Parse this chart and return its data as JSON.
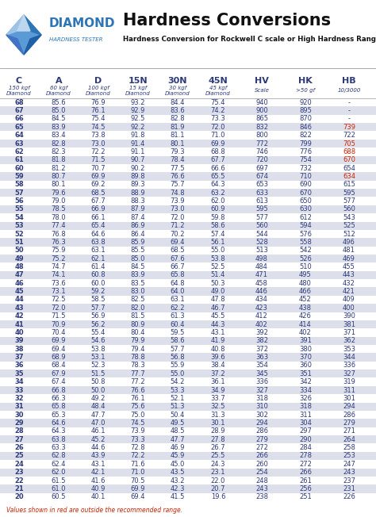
{
  "title": "Hardness Conversions",
  "subtitle": "Hardness Conversion for Rockwell C scale or High Hardness Range",
  "logo_text": "DIAMOND",
  "logo_subtext": "HARDNESS TESTER",
  "headers": [
    "C",
    "A",
    "D",
    "15N",
    "30N",
    "45N",
    "HV",
    "HK",
    "HB"
  ],
  "subheaders": [
    "150 kgf\nDiamond",
    "60 kgf\nDiamond",
    "100 kgf\nDiamond",
    "15 kgf\nDiamond",
    "30 kgf\nDiamond",
    "45 kgf\nDiamond",
    "Scale",
    ">50 gf",
    "10/3000"
  ],
  "rows": [
    [
      68,
      85.6,
      76.9,
      93.2,
      84.4,
      75.4,
      940,
      920,
      "-"
    ],
    [
      67,
      85.0,
      76.1,
      92.9,
      83.6,
      74.2,
      900,
      895,
      "-"
    ],
    [
      66,
      84.5,
      75.4,
      92.5,
      82.8,
      73.3,
      865,
      870,
      "-"
    ],
    [
      65,
      83.9,
      74.5,
      92.2,
      81.9,
      72.0,
      832,
      846,
      "739"
    ],
    [
      64,
      83.4,
      73.8,
      91.8,
      81.1,
      71.0,
      800,
      822,
      "722"
    ],
    [
      63,
      82.8,
      73.0,
      91.4,
      80.1,
      69.9,
      772,
      799,
      "705"
    ],
    [
      62,
      82.3,
      72.2,
      91.1,
      79.3,
      68.8,
      746,
      776,
      "688"
    ],
    [
      61,
      81.8,
      71.5,
      90.7,
      78.4,
      67.7,
      720,
      754,
      "670"
    ],
    [
      60,
      81.2,
      70.7,
      90.2,
      77.5,
      66.6,
      697,
      732,
      "654"
    ],
    [
      59,
      80.7,
      69.9,
      89.8,
      76.6,
      65.5,
      674,
      710,
      "634"
    ],
    [
      58,
      80.1,
      69.2,
      89.3,
      75.7,
      64.3,
      653,
      690,
      615
    ],
    [
      57,
      79.6,
      68.5,
      88.9,
      74.8,
      63.2,
      633,
      670,
      595
    ],
    [
      56,
      79.0,
      67.7,
      88.3,
      73.9,
      62.0,
      613,
      650,
      577
    ],
    [
      55,
      78.5,
      66.9,
      87.9,
      73.0,
      60.9,
      595,
      630,
      560
    ],
    [
      54,
      78.0,
      66.1,
      87.4,
      72.0,
      59.8,
      577,
      612,
      543
    ],
    [
      53,
      77.4,
      65.4,
      86.9,
      71.2,
      58.6,
      560,
      594,
      525
    ],
    [
      52,
      76.8,
      64.6,
      86.4,
      70.2,
      57.4,
      544,
      576,
      512
    ],
    [
      51,
      76.3,
      63.8,
      85.9,
      69.4,
      56.1,
      528,
      558,
      496
    ],
    [
      50,
      75.9,
      63.1,
      85.5,
      68.5,
      55.0,
      513,
      542,
      481
    ],
    [
      49,
      75.2,
      62.1,
      85.0,
      67.6,
      53.8,
      498,
      526,
      469
    ],
    [
      48,
      74.7,
      61.4,
      84.5,
      66.7,
      52.5,
      484,
      510,
      455
    ],
    [
      47,
      74.1,
      60.8,
      83.9,
      65.8,
      51.4,
      471,
      495,
      443
    ],
    [
      46,
      73.6,
      60.0,
      83.5,
      64.8,
      50.3,
      458,
      480,
      432
    ],
    [
      45,
      73.1,
      59.2,
      83.0,
      64.0,
      49.0,
      446,
      466,
      421
    ],
    [
      44,
      72.5,
      58.5,
      82.5,
      63.1,
      47.8,
      434,
      452,
      409
    ],
    [
      43,
      72.0,
      57.7,
      82.0,
      62.2,
      46.7,
      423,
      438,
      400
    ],
    [
      42,
      71.5,
      56.9,
      81.5,
      61.3,
      45.5,
      412,
      426,
      390
    ],
    [
      41,
      70.9,
      56.2,
      80.9,
      60.4,
      44.3,
      402,
      414,
      381
    ],
    [
      40,
      70.4,
      55.4,
      80.4,
      59.5,
      43.1,
      392,
      402,
      371
    ],
    [
      39,
      69.9,
      54.6,
      79.9,
      58.6,
      41.9,
      382,
      391,
      362
    ],
    [
      38,
      69.4,
      53.8,
      79.4,
      57.7,
      40.8,
      372,
      380,
      353
    ],
    [
      37,
      68.9,
      53.1,
      78.8,
      56.8,
      39.6,
      363,
      370,
      344
    ],
    [
      36,
      68.4,
      52.3,
      78.3,
      55.9,
      38.4,
      354,
      360,
      336
    ],
    [
      35,
      67.9,
      51.5,
      77.7,
      55.0,
      37.2,
      345,
      351,
      327
    ],
    [
      34,
      67.4,
      50.8,
      77.2,
      54.2,
      36.1,
      336,
      342,
      319
    ],
    [
      33,
      66.8,
      50.0,
      76.6,
      53.3,
      34.9,
      327,
      334,
      311
    ],
    [
      32,
      66.3,
      49.2,
      76.1,
      52.1,
      33.7,
      318,
      326,
      301
    ],
    [
      31,
      65.8,
      48.4,
      75.6,
      51.3,
      32.5,
      310,
      318,
      294
    ],
    [
      30,
      65.3,
      47.7,
      75.0,
      50.4,
      31.3,
      302,
      311,
      286
    ],
    [
      29,
      64.6,
      47.0,
      74.5,
      49.5,
      30.1,
      294,
      304,
      279
    ],
    [
      28,
      64.3,
      46.1,
      73.9,
      48.5,
      28.9,
      286,
      297,
      271
    ],
    [
      27,
      63.8,
      45.2,
      73.3,
      47.7,
      27.8,
      279,
      290,
      264
    ],
    [
      26,
      63.3,
      44.6,
      72.8,
      46.9,
      26.7,
      272,
      284,
      258
    ],
    [
      25,
      62.8,
      43.9,
      72.2,
      45.9,
      25.5,
      266,
      278,
      253
    ],
    [
      24,
      62.4,
      43.1,
      71.6,
      45.0,
      24.3,
      260,
      272,
      247
    ],
    [
      23,
      62.0,
      42.1,
      71.0,
      43.5,
      23.1,
      254,
      266,
      243
    ],
    [
      22,
      61.5,
      41.6,
      70.5,
      43.2,
      22.0,
      248,
      261,
      237
    ],
    [
      21,
      61.0,
      40.9,
      69.9,
      42.3,
      20.7,
      243,
      256,
      231
    ],
    [
      20,
      60.5,
      40.1,
      69.4,
      41.5,
      19.6,
      238,
      251,
      226
    ]
  ],
  "red_hb_values": [
    "739",
    "705",
    "688",
    "670",
    "634"
  ],
  "shaded_rows": [
    67,
    65,
    63,
    61,
    59,
    57,
    55,
    53,
    51,
    49,
    47,
    45,
    43,
    41,
    39,
    37,
    35,
    33,
    31,
    29,
    27,
    25,
    23,
    21
  ],
  "bg_color": "#ffffff",
  "shaded_color": "#dde0eb",
  "text_color": "#2d3a7a",
  "red_color": "#cc2200",
  "footer_text": "Values shown in red are outside the recommended range.",
  "fig_width": 4.74,
  "fig_height": 6.52,
  "dpi": 100
}
